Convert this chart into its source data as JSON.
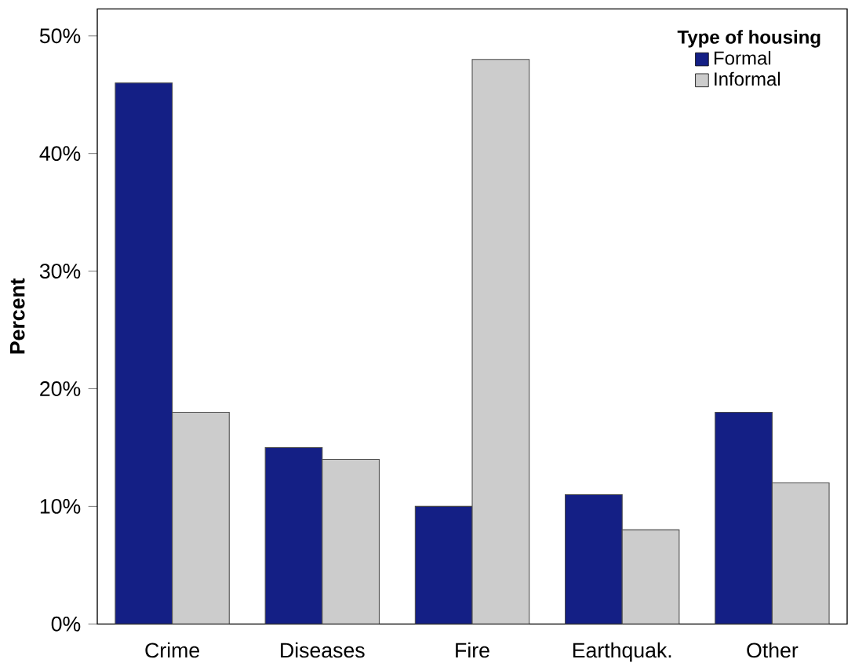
{
  "chart_data": {
    "type": "bar",
    "ylabel": "Percent",
    "legend_title": "Type of housing",
    "categories": [
      "Crime",
      "Diseases",
      "Fire",
      "Earthquak.",
      "Other"
    ],
    "series": [
      {
        "name": "Formal",
        "color": "#141f85",
        "values": [
          46,
          15,
          10,
          11,
          18
        ]
      },
      {
        "name": "Informal",
        "color": "#cccccc",
        "values": [
          18,
          14,
          48,
          8,
          12
        ]
      }
    ],
    "ylim": [
      0,
      52.3
    ],
    "yticks": [
      {
        "value": 0,
        "label": "0%"
      },
      {
        "value": 10,
        "label": "10%"
      },
      {
        "value": 20,
        "label": "20%"
      },
      {
        "value": 30,
        "label": "30%"
      },
      {
        "value": 40,
        "label": "40%"
      },
      {
        "value": 50,
        "label": "50%"
      }
    ],
    "legend": "top right"
  }
}
